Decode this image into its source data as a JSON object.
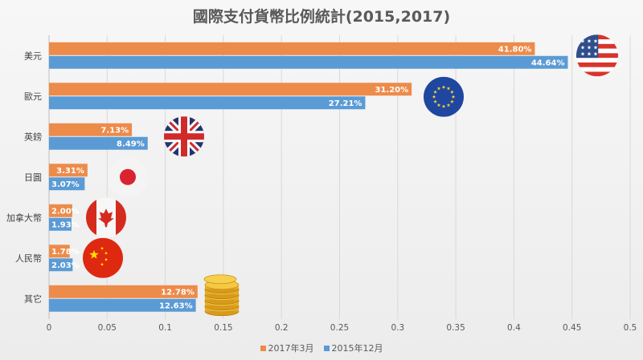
{
  "chart_data": {
    "type": "bar",
    "orientation": "horizontal",
    "title": "國際支付貨幣比例統計(2015,2017)",
    "categories": [
      "美元",
      "歐元",
      "英鎊",
      "日圓",
      "加拿大幣",
      "人民幣",
      "其它"
    ],
    "series": [
      {
        "name": "2017年3月",
        "color": "#ed8b4a",
        "values": [
          0.418,
          0.312,
          0.0713,
          0.0331,
          0.02,
          0.0178,
          0.1278
        ],
        "labels": [
          "41.80%",
          "31.20%",
          "7.13%",
          "3.31%",
          "2.00%",
          "1.78%",
          "12.78%"
        ]
      },
      {
        "name": "2015年12月",
        "color": "#5b9bd5",
        "values": [
          0.4464,
          0.2721,
          0.0849,
          0.0307,
          0.0193,
          0.0203,
          0.1263
        ],
        "labels": [
          "44.64%",
          "27.21%",
          "8.49%",
          "3.07%",
          "1.93%",
          "2.03%",
          "12.63%"
        ]
      }
    ],
    "xlim": [
      0,
      0.5
    ],
    "x_ticks": [
      "0",
      "0.05",
      "0.1",
      "0.15",
      "0.2",
      "0.25",
      "0.3",
      "0.35",
      "0.4",
      "0.45",
      "0.5"
    ],
    "grid": true,
    "legend": "bottom",
    "icons": [
      "us-flag-icon",
      "eu-flag-icon",
      "uk-flag-icon",
      "japan-flag-icon",
      "canada-flag-icon",
      "china-flag-icon",
      "coins-icon"
    ]
  }
}
